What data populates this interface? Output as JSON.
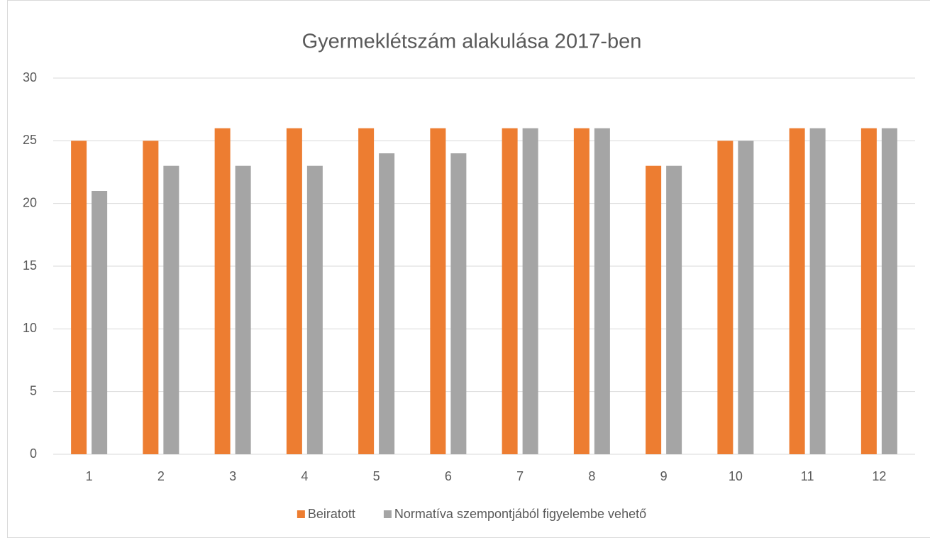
{
  "chart_data": {
    "type": "bar",
    "title": "Gyermeklétszám alakulása 2017-ben",
    "categories": [
      "1",
      "2",
      "3",
      "4",
      "5",
      "6",
      "7",
      "8",
      "9",
      "10",
      "11",
      "12"
    ],
    "series": [
      {
        "name": "Beiratott",
        "color": "#ed7d31",
        "values": [
          25,
          25,
          26,
          26,
          26,
          26,
          26,
          26,
          23,
          25,
          26,
          26
        ]
      },
      {
        "name": "Normatíva szempontjából figyelembe vehető",
        "color": "#a5a5a5",
        "values": [
          21,
          23,
          23,
          23,
          24,
          24,
          26,
          26,
          23,
          25,
          26,
          26
        ]
      }
    ],
    "ylim": [
      0,
      30
    ],
    "yticks": [
      0,
      5,
      10,
      15,
      20,
      25,
      30
    ],
    "grid": true,
    "legend": "bottom"
  }
}
